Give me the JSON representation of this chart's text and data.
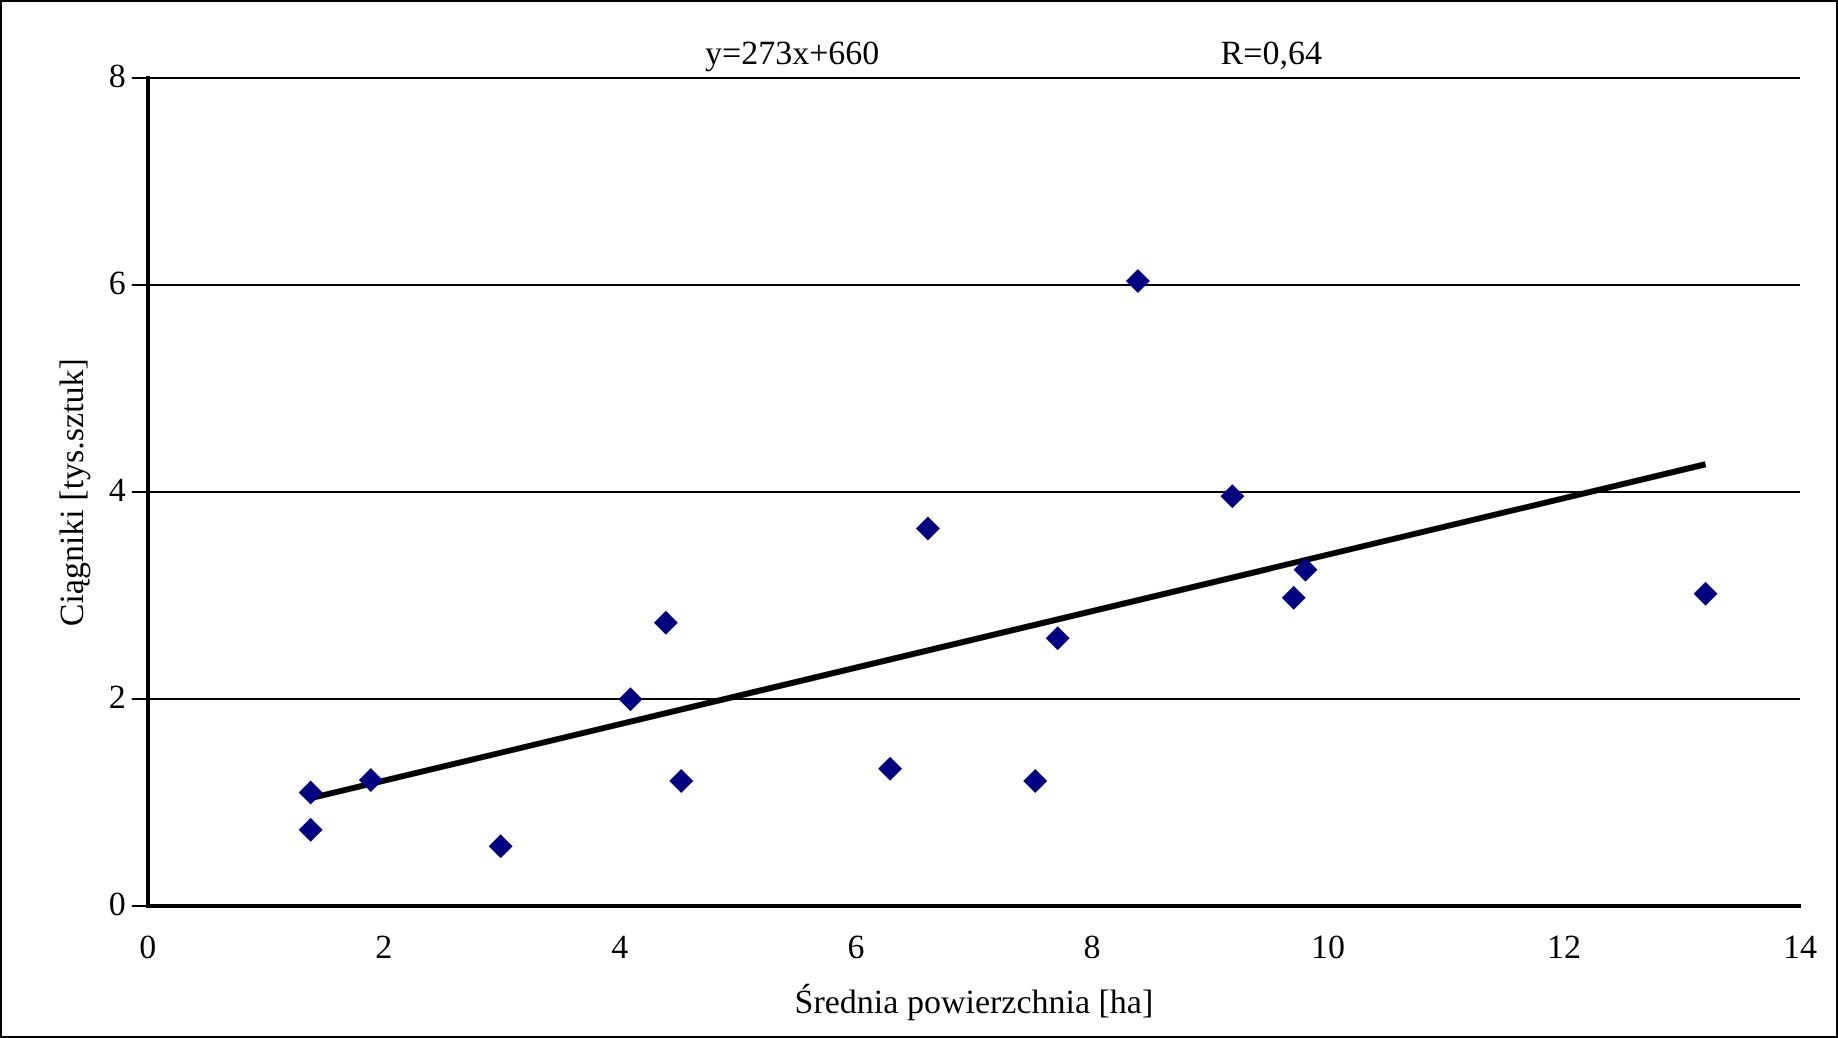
{
  "chart_data": {
    "type": "scatter",
    "xlabel": "Średnia powierzchnia [ha]",
    "ylabel": "Ciągniki [tys.sztuk]",
    "annotations": [
      "y=273x+660",
      "R=0,64"
    ],
    "xlim": [
      0,
      14
    ],
    "xticks": [
      0,
      2,
      4,
      6,
      8,
      10,
      12,
      14
    ],
    "ylim": [
      0,
      8
    ],
    "yticks": [
      0,
      2,
      4,
      6,
      8
    ],
    "grid": "y",
    "legend": false,
    "marker": "diamond",
    "series": [
      {
        "type": "scatter",
        "color": "#000080",
        "x": [
          1.38,
          1.38,
          1.89,
          2.99,
          4.09,
          4.39,
          4.52,
          6.29,
          6.61,
          7.52,
          7.71,
          8.39,
          9.19,
          9.71,
          9.81,
          13.2
        ],
        "values": [
          1.1,
          0.74,
          1.22,
          0.58,
          2.0,
          2.74,
          1.21,
          1.33,
          3.65,
          1.21,
          2.59,
          6.04,
          3.96,
          2.98,
          3.25,
          3.02
        ]
      },
      {
        "type": "line",
        "color": "#000000",
        "marker": "none",
        "line_style": "solid",
        "x": [
          1.4,
          13.2
        ],
        "values": [
          1.05,
          4.27
        ]
      }
    ]
  }
}
